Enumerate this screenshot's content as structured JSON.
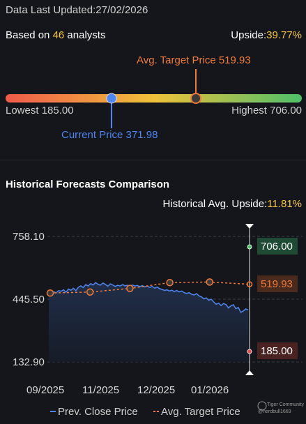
{
  "header": {
    "updated_label": "Data Last Updated:",
    "updated_date": "27/02/2026",
    "based_on_prefix": "Based on ",
    "analyst_count": "46",
    "based_on_suffix": " analysts",
    "upside_label": "Upside:",
    "upside_value": "39.77%"
  },
  "gauge": {
    "min": 185.0,
    "max": 706.0,
    "current": 371.98,
    "avg_target": 519.93,
    "avg_target_label": "Avg. Target Price 519.93",
    "lowest_label": "Lowest 185.00",
    "highest_label": "Highest 706.00",
    "current_label": "Current Price 371.98",
    "colors": {
      "low": "#f05a4a",
      "mid": "#f0c13a",
      "high": "#4fbf6a",
      "current": "#4f86f0",
      "target": "#f07a3a"
    }
  },
  "historical": {
    "title": "Historical Forecasts Comparison",
    "upside_label": "Historical Avg. Upside:",
    "upside_value": "11.81%"
  },
  "chart_data": {
    "type": "line",
    "y_ticks": [
      "758.10",
      "445.50",
      "132.90"
    ],
    "ylim": [
      132.9,
      758.1
    ],
    "x_ticks": [
      "09/2025",
      "11/2025",
      "12/2025",
      "01/2026"
    ],
    "series": [
      {
        "name": "Prev. Close Price",
        "color": "#4f86f0",
        "values": [
          482,
          476,
          483,
          477,
          488,
          485,
          492,
          480,
          496,
          490,
          500,
          488,
          505,
          512,
          503,
          518,
          511,
          523,
          516,
          528,
          520,
          515,
          526,
          519,
          510,
          522,
          516,
          509,
          515,
          511,
          518,
          512,
          515,
          509,
          516,
          511,
          514,
          508,
          513,
          507,
          511,
          504,
          509,
          500,
          506,
          498,
          494,
          489,
          492,
          486,
          490,
          483,
          489,
          482,
          486,
          478,
          474,
          478,
          470,
          466,
          473,
          462,
          457,
          447,
          452,
          440,
          445,
          432,
          420,
          426,
          414,
          424,
          419,
          402,
          412,
          418,
          398,
          404,
          380,
          386,
          397,
          392
        ]
      },
      {
        "name": "Avg. Target Price",
        "color": "#f07a3a",
        "values": [
          476,
          481,
          499,
          528,
          531,
          520
        ]
      }
    ],
    "marker_labels": {
      "highest": "706.00",
      "target": "519.93",
      "lowest": "185.00"
    },
    "legend": {
      "position": "bottom"
    }
  },
  "watermark": {
    "brand": "Tiger Community",
    "user": "@nerdbull1669"
  }
}
